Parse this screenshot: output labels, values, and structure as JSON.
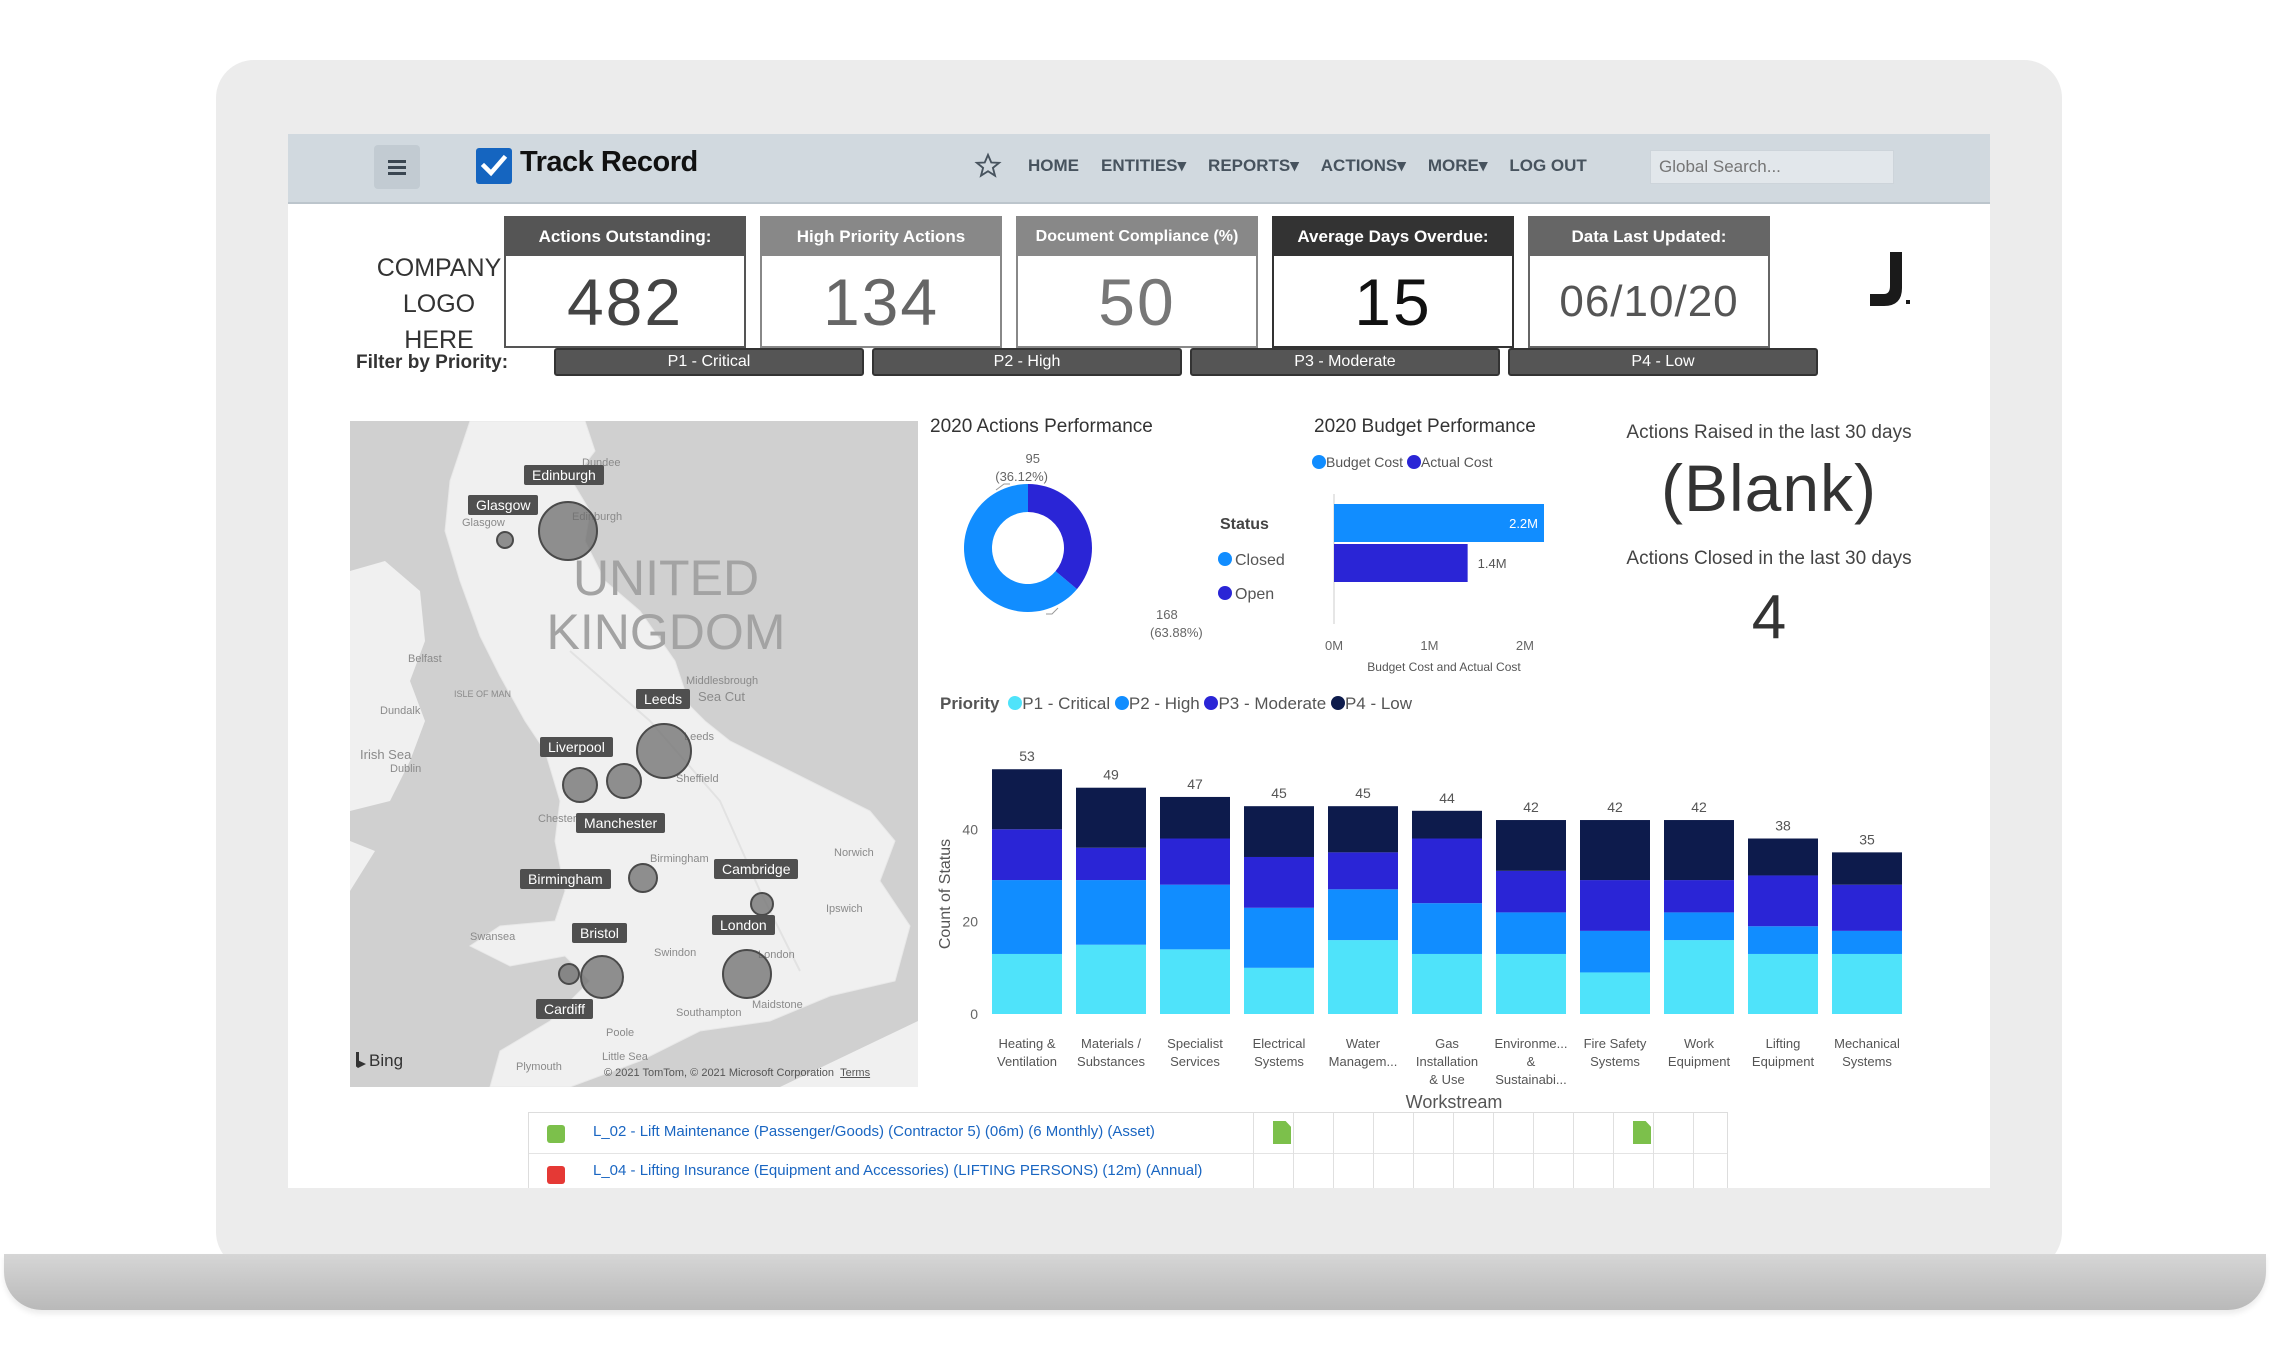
{
  "nav": {
    "brand": "Track Record",
    "links": [
      "HOME",
      "ENTITIES▾",
      "REPORTS▾",
      "ACTIONS▾",
      "MORE▾",
      "LOG OUT"
    ],
    "search_placeholder": "Global Search..."
  },
  "company_logo": [
    "COMPANY",
    "LOGO HERE"
  ],
  "kpis": [
    {
      "label": "Actions Outstanding:",
      "value": "482",
      "header_color": "#555555",
      "value_color": "#444444"
    },
    {
      "label": "High Priority Actions",
      "value": "134",
      "header_color": "#888888",
      "value_color": "#666666"
    },
    {
      "label": "Document Compliance (%)",
      "value": "50",
      "header_color": "#888888",
      "value_color": "#777777"
    },
    {
      "label": "Average Days Overdue:",
      "value": "15",
      "header_color": "#333333",
      "value_color": "#111111"
    },
    {
      "label": "Data Last Updated:",
      "value": "06/10/20",
      "header_color": "#666666",
      "value_color": "#555555"
    }
  ],
  "filter": {
    "label": "Filter by Priority:",
    "buttons": [
      "P1 - Critical",
      "P2 - High",
      "P3 - Moderate",
      "P4 - Low"
    ]
  },
  "map": {
    "country": [
      "UNITED",
      "KINGDOM"
    ],
    "cities": [
      "Edinburgh",
      "Glasgow",
      "Leeds",
      "Liverpool",
      "Manchester",
      "Birmingham",
      "Cambridge",
      "London",
      "Bristol",
      "Cardiff"
    ],
    "places": [
      "Dundee",
      "Edinburgh",
      "Glasgow",
      "Belfast",
      "ISLE OF MAN",
      "Dundalk",
      "Irish Sea",
      "Dublin",
      "Middlesbrough",
      "Sea Cut",
      "Leeds",
      "Sheffield",
      "Chester",
      "Norwich",
      "Birmingham",
      "Ipswich",
      "Swansea",
      "Swindon",
      "London",
      "Maidstone",
      "Southampton",
      "Poole",
      "Plymouth",
      "Little Sea"
    ],
    "bing": "Bing",
    "copyright": "© 2021 TomTom, © 2021 Microsoft Corporation",
    "terms": "Terms"
  },
  "actions_perf": {
    "title": "2020 Actions Performance",
    "legend_title": "Status",
    "legend": [
      "Closed",
      "Open"
    ],
    "label_closed": [
      "168",
      "(63.88%)"
    ],
    "label_open": [
      "95",
      "(36.12%)"
    ]
  },
  "budget_perf": {
    "title": "2020 Budget Performance",
    "legend": [
      "Budget Cost",
      "Actual Cost"
    ],
    "xlabel": "Budget Cost and Actual Cost"
  },
  "side_stats": {
    "raised_label": "Actions Raised in the last 30 days",
    "raised_value": "(Blank)",
    "closed_label": "Actions Closed in the last 30 days",
    "closed_value": "4"
  },
  "priority_legend": {
    "title": "Priority",
    "items": [
      "P1 - Critical",
      "P2 - High",
      "P3 - Moderate",
      "P4 - Low"
    ]
  },
  "table_rows": [
    {
      "text": "L_02 - Lift Maintenance (Passenger/Goods) (Contractor 5) (06m) (6 Monthly) (Asset)",
      "status_color": "#7cc04b"
    },
    {
      "text": "L_04 - Lifting Insurance (Equipment and Accessories) (LIFTING PERSONS) (12m) (Annual)",
      "status_color": "#e53935"
    }
  ],
  "chart_data": [
    {
      "type": "pie",
      "title": "2020 Actions Performance",
      "legend_title": "Status",
      "labels": [
        "Closed",
        "Open"
      ],
      "values": [
        168,
        95
      ],
      "percent": [
        63.88,
        36.12
      ],
      "colors": [
        "#118dff",
        "#2a25d6"
      ],
      "donut": true
    },
    {
      "type": "bar",
      "orientation": "horizontal",
      "title": "2020 Budget Performance",
      "categories": [
        "Budget Cost",
        "Actual Cost"
      ],
      "values": [
        2.2,
        1.4
      ],
      "value_labels": [
        "2.2M",
        "1.4M"
      ],
      "colors": [
        "#118dff",
        "#2a25d6"
      ],
      "xlabel": "Budget Cost and Actual Cost",
      "xticks": [
        "0M",
        "1M",
        "2M"
      ],
      "xlim": [
        0,
        2.2
      ]
    },
    {
      "type": "bar",
      "stacked": true,
      "xlabel": "Workstream",
      "ylabel": "Count of Status",
      "ylim": [
        0,
        55
      ],
      "yticks": [
        0,
        20,
        40
      ],
      "legend_title": "Priority",
      "categories": [
        [
          "Heating &",
          "Ventilation"
        ],
        [
          "Materials /",
          "Substances"
        ],
        [
          "Specialist",
          "Services"
        ],
        [
          "Electrical",
          "Systems"
        ],
        [
          "Water",
          "Managem..."
        ],
        [
          "Gas",
          "Installation",
          "& Use"
        ],
        [
          "Environme...",
          "&",
          "Sustainabi..."
        ],
        [
          "Fire Safety",
          "Systems"
        ],
        [
          "Work",
          "Equipment"
        ],
        [
          "Lifting",
          "Equipment"
        ],
        [
          "Mechanical",
          "Systems"
        ]
      ],
      "totals": [
        53,
        49,
        47,
        45,
        45,
        44,
        42,
        42,
        42,
        38,
        35
      ],
      "series": [
        {
          "name": "P1 - Critical",
          "color": "#4fe3fa",
          "values": [
            13,
            15,
            14,
            10,
            16,
            13,
            13,
            9,
            16,
            13,
            13
          ]
        },
        {
          "name": "P2 - High",
          "color": "#118dff",
          "values": [
            16,
            14,
            14,
            13,
            11,
            11,
            9,
            9,
            6,
            6,
            5
          ]
        },
        {
          "name": "P3 - Moderate",
          "color": "#2a25d6",
          "values": [
            11,
            7,
            10,
            11,
            8,
            14,
            9,
            11,
            7,
            11,
            10
          ]
        },
        {
          "name": "P4 - Low",
          "color": "#0d1b4c",
          "values": [
            13,
            13,
            9,
            11,
            10,
            6,
            11,
            13,
            13,
            8,
            7
          ]
        }
      ]
    }
  ]
}
